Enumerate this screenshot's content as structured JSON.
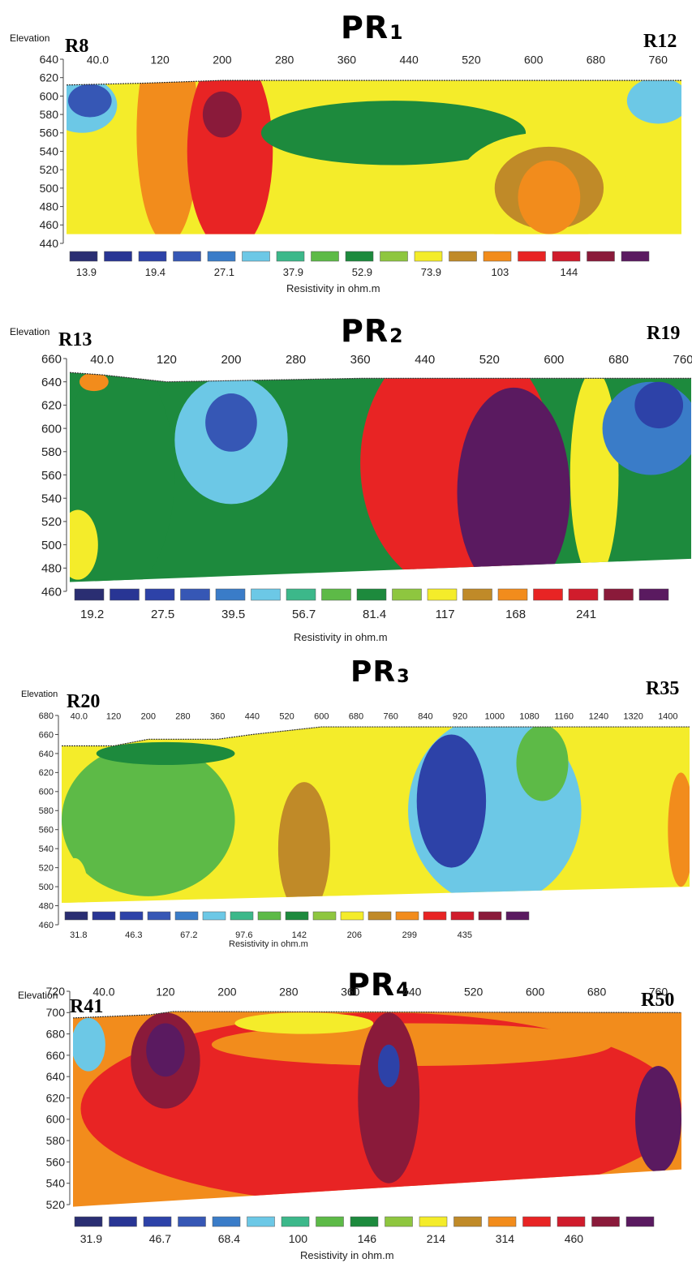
{
  "palette": [
    "#2a2e72",
    "#283594",
    "#2d42a8",
    "#3657b5",
    "#3a7cc8",
    "#6cc8e6",
    "#3cb88a",
    "#5dba47",
    "#1d8a3d",
    "#8ec63f",
    "#f4ec2a",
    "#c08a28",
    "#f28c1c",
    "#e82424",
    "#d01c2c",
    "#8a1a3a",
    "#5a1a60"
  ],
  "chart_data": [
    {
      "type": "heatmap",
      "title": "PR",
      "title_subscript": "1",
      "ylabel": "Elevation",
      "left_label": "R8",
      "right_label": "R12",
      "xticks": [
        "40.0",
        "120",
        "200",
        "280",
        "360",
        "440",
        "520",
        "600",
        "680",
        "760"
      ],
      "xtick_values": [
        40,
        120,
        200,
        280,
        360,
        440,
        520,
        600,
        680,
        760
      ],
      "xlim": [
        0,
        790
      ],
      "yticks": [
        "640",
        "620",
        "600",
        "580",
        "560",
        "540",
        "520",
        "500",
        "480",
        "460",
        "440"
      ],
      "ylim": [
        440,
        640
      ],
      "surface": [
        [
          0,
          612
        ],
        [
          100,
          614
        ],
        [
          200,
          617
        ],
        [
          300,
          617
        ],
        [
          790,
          617
        ]
      ],
      "bottom": [
        [
          0,
          450
        ],
        [
          790,
          450
        ]
      ],
      "legend_values": [
        "13.9",
        "19.4",
        "27.1",
        "37.9",
        "52.9",
        "73.9",
        "103",
        "144"
      ],
      "legend_caption": "Resistivity in ohm.m",
      "zones": [
        {
          "class": 5,
          "x": 20,
          "y": 590,
          "rx": 45,
          "ry": 30
        },
        {
          "class": 3,
          "x": 30,
          "y": 595,
          "rx": 28,
          "ry": 18
        },
        {
          "class": 12,
          "x": 130,
          "y": 560,
          "rx": 40,
          "ry": 120
        },
        {
          "class": 13,
          "x": 210,
          "y": 540,
          "rx": 55,
          "ry": 110
        },
        {
          "class": 15,
          "x": 200,
          "y": 580,
          "rx": 25,
          "ry": 25
        },
        {
          "class": 8,
          "x": 420,
          "y": 560,
          "rx": 170,
          "ry": 35
        },
        {
          "class": 10,
          "x": 610,
          "y": 500,
          "rx": 110,
          "ry": 60
        },
        {
          "class": 11,
          "x": 620,
          "y": 500,
          "rx": 70,
          "ry": 45
        },
        {
          "class": 12,
          "x": 620,
          "y": 490,
          "rx": 40,
          "ry": 40
        },
        {
          "class": 5,
          "x": 760,
          "y": 595,
          "rx": 40,
          "ry": 25
        }
      ]
    },
    {
      "type": "heatmap",
      "title": "PR",
      "title_subscript": "2",
      "ylabel": "Elevation",
      "left_label": "R13",
      "right_label": "R19",
      "xticks": [
        "40.0",
        "120",
        "200",
        "280",
        "360",
        "440",
        "520",
        "600",
        "680",
        "760"
      ],
      "xtick_values": [
        40,
        120,
        200,
        280,
        360,
        440,
        520,
        600,
        680,
        760
      ],
      "xlim": [
        0,
        770
      ],
      "yticks": [
        "660",
        "640",
        "620",
        "600",
        "580",
        "560",
        "540",
        "520",
        "500",
        "480",
        "460"
      ],
      "ylim": [
        460,
        660
      ],
      "surface": [
        [
          0,
          648
        ],
        [
          40,
          646
        ],
        [
          120,
          640
        ],
        [
          200,
          641
        ],
        [
          360,
          643
        ],
        [
          770,
          643
        ]
      ],
      "bottom": [
        [
          0,
          468
        ],
        [
          770,
          488
        ]
      ],
      "legend_values": [
        "19.2",
        "27.5",
        "39.5",
        "56.7",
        "81.4",
        "117",
        "168",
        "241"
      ],
      "legend_caption": "Resistivity in ohm.m",
      "zones": [
        {
          "class": 8,
          "x": 60,
          "y": 560,
          "rx": 70,
          "ry": 100
        },
        {
          "class": 10,
          "x": 10,
          "y": 500,
          "rx": 25,
          "ry": 30
        },
        {
          "class": 12,
          "x": 30,
          "y": 640,
          "rx": 18,
          "ry": 8
        },
        {
          "class": 5,
          "x": 200,
          "y": 590,
          "rx": 70,
          "ry": 55
        },
        {
          "class": 3,
          "x": 200,
          "y": 605,
          "rx": 32,
          "ry": 25
        },
        {
          "class": 13,
          "x": 480,
          "y": 570,
          "rx": 120,
          "ry": 110
        },
        {
          "class": 16,
          "x": 550,
          "y": 545,
          "rx": 70,
          "ry": 90
        },
        {
          "class": 10,
          "x": 650,
          "y": 560,
          "rx": 30,
          "ry": 90
        },
        {
          "class": 4,
          "x": 720,
          "y": 600,
          "rx": 60,
          "ry": 40
        },
        {
          "class": 2,
          "x": 730,
          "y": 620,
          "rx": 30,
          "ry": 20
        }
      ]
    },
    {
      "type": "heatmap",
      "title": "PR",
      "title_subscript": "3",
      "ylabel": "Elevation",
      "left_label": "R20",
      "right_label": "R35",
      "xticks": [
        "40.0",
        "120",
        "200",
        "280",
        "360",
        "440",
        "520",
        "600",
        "680",
        "760",
        "840",
        "920",
        "1000",
        "1080",
        "1160",
        "1240",
        "1320",
        "1400"
      ],
      "xtick_values": [
        40,
        120,
        200,
        280,
        360,
        440,
        520,
        600,
        680,
        760,
        840,
        920,
        1000,
        1080,
        1160,
        1240,
        1320,
        1400
      ],
      "xlim": [
        0,
        1450
      ],
      "yticks": [
        "680",
        "660",
        "640",
        "620",
        "600",
        "580",
        "560",
        "540",
        "520",
        "500",
        "480",
        "460"
      ],
      "ylim": [
        460,
        680
      ],
      "surface": [
        [
          0,
          648
        ],
        [
          120,
          648
        ],
        [
          200,
          655
        ],
        [
          360,
          655
        ],
        [
          440,
          660
        ],
        [
          600,
          668
        ],
        [
          1450,
          668
        ]
      ],
      "bottom": [
        [
          0,
          483
        ],
        [
          1450,
          500
        ]
      ],
      "legend_values": [
        "31.8",
        "46.3",
        "67.2",
        "97.6",
        "142",
        "206",
        "299",
        "435"
      ],
      "legend_caption": "Resistivity in ohm.m",
      "zones": [
        {
          "class": 7,
          "x": 200,
          "y": 570,
          "rx": 200,
          "ry": 80
        },
        {
          "class": 8,
          "x": 240,
          "y": 640,
          "rx": 160,
          "ry": 12
        },
        {
          "class": 10,
          "x": 600,
          "y": 560,
          "rx": 130,
          "ry": 100
        },
        {
          "class": 11,
          "x": 560,
          "y": 540,
          "rx": 60,
          "ry": 70
        },
        {
          "class": 10,
          "x": 30,
          "y": 500,
          "rx": 30,
          "ry": 30
        },
        {
          "class": 5,
          "x": 1000,
          "y": 580,
          "rx": 200,
          "ry": 100
        },
        {
          "class": 2,
          "x": 900,
          "y": 590,
          "rx": 80,
          "ry": 70
        },
        {
          "class": 7,
          "x": 1110,
          "y": 630,
          "rx": 60,
          "ry": 40
        },
        {
          "class": 12,
          "x": 1430,
          "y": 560,
          "rx": 30,
          "ry": 60
        }
      ]
    },
    {
      "type": "heatmap",
      "title": "PR",
      "title_subscript": "4",
      "ylabel": "Elevation",
      "left_label": "R41",
      "right_label": "R50",
      "xticks": [
        "40.0",
        "120",
        "200",
        "280",
        "360",
        "440",
        "520",
        "600",
        "680",
        "760"
      ],
      "xtick_values": [
        40,
        120,
        200,
        280,
        360,
        440,
        520,
        600,
        680,
        760
      ],
      "xlim": [
        0,
        790
      ],
      "yticks": [
        "720",
        "700",
        "680",
        "660",
        "640",
        "620",
        "600",
        "580",
        "560",
        "540",
        "520"
      ],
      "ylim": [
        520,
        720
      ],
      "surface": [
        [
          0,
          695
        ],
        [
          100,
          698
        ],
        [
          130,
          701
        ],
        [
          790,
          700
        ]
      ],
      "bottom": [
        [
          0,
          518
        ],
        [
          790,
          553
        ]
      ],
      "legend_values": [
        "31.9",
        "46.7",
        "68.4",
        "100",
        "146",
        "214",
        "314",
        "460"
      ],
      "legend_caption": "Resistivity in ohm.m",
      "zones": [
        {
          "class": 13,
          "x": 400,
          "y": 610,
          "rx": 390,
          "ry": 90
        },
        {
          "class": 12,
          "x": 440,
          "y": 670,
          "rx": 260,
          "ry": 20
        },
        {
          "class": 10,
          "x": 300,
          "y": 690,
          "rx": 90,
          "ry": 10
        },
        {
          "class": 15,
          "x": 120,
          "y": 655,
          "rx": 45,
          "ry": 45
        },
        {
          "class": 16,
          "x": 120,
          "y": 665,
          "rx": 25,
          "ry": 25
        },
        {
          "class": 15,
          "x": 410,
          "y": 620,
          "rx": 40,
          "ry": 80
        },
        {
          "class": 2,
          "x": 410,
          "y": 650,
          "rx": 14,
          "ry": 20
        },
        {
          "class": 5,
          "x": 20,
          "y": 670,
          "rx": 22,
          "ry": 25
        },
        {
          "class": 16,
          "x": 760,
          "y": 600,
          "rx": 30,
          "ry": 50
        }
      ]
    }
  ]
}
